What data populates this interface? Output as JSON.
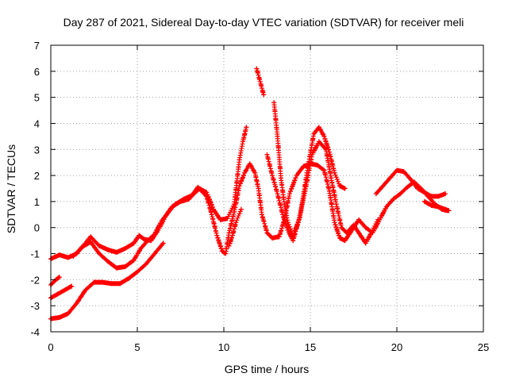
{
  "chart_data": {
    "type": "scatter",
    "title": "Day 287 of 2021, Sidereal Day-to-day VTEC variation (SDTVAR) for receiver meli",
    "xlabel": "GPS time / hours",
    "ylabel": "SDTVAR / TECUs",
    "xlim": [
      0,
      25
    ],
    "ylim": [
      -4,
      7
    ],
    "xticks": [
      0,
      5,
      10,
      15,
      20,
      25
    ],
    "yticks": [
      -4,
      -3,
      -2,
      -1,
      0,
      1,
      2,
      3,
      4,
      5,
      6,
      7
    ],
    "grid": true,
    "marker": "+",
    "color": "#ff0000",
    "series": [
      {
        "name": "track-1",
        "points": [
          [
            0,
            -1.2
          ],
          [
            0.5,
            -1.05
          ],
          [
            1,
            -1.15
          ],
          [
            1.5,
            -1.0
          ],
          [
            2,
            -0.6
          ],
          [
            2.3,
            -0.35
          ],
          [
            2.8,
            -0.7
          ],
          [
            3.3,
            -0.85
          ],
          [
            3.8,
            -0.95
          ],
          [
            4.3,
            -0.8
          ],
          [
            4.8,
            -0.6
          ],
          [
            5.1,
            -0.3
          ],
          [
            5.4,
            -0.45
          ],
          [
            5.8,
            -0.5
          ],
          [
            6.2,
            -0.1
          ],
          [
            6.6,
            0.4
          ],
          [
            7,
            0.8
          ],
          [
            7.5,
            1.0
          ],
          [
            8,
            1.1
          ],
          [
            8.5,
            1.55
          ],
          [
            9,
            1.2
          ],
          [
            9.3,
            0.5
          ],
          [
            9.6,
            -0.3
          ],
          [
            9.9,
            -0.9
          ],
          [
            10.1,
            -1.0
          ],
          [
            10.3,
            -0.2
          ],
          [
            10.6,
            0.6
          ],
          [
            10.9,
            1.6
          ],
          [
            11.2,
            2.1
          ],
          [
            11.5,
            2.45
          ],
          [
            11.8,
            2.1
          ],
          [
            12.0,
            1.5
          ],
          [
            12.2,
            0.5
          ],
          [
            12.5,
            -0.2
          ],
          [
            12.8,
            -0.4
          ],
          [
            13.2,
            -0.35
          ],
          [
            13.5,
            0.3
          ],
          [
            13.8,
            1.3
          ],
          [
            14.2,
            2.0
          ],
          [
            14.6,
            2.35
          ],
          [
            15,
            2.45
          ],
          [
            15.4,
            2.4
          ],
          [
            15.8,
            2.2
          ],
          [
            16.1,
            1.4
          ],
          [
            16.4,
            0.2
          ],
          [
            16.7,
            -0.4
          ],
          [
            17,
            -0.5
          ],
          [
            17.4,
            -0.1
          ],
          [
            17.8,
            0.3
          ],
          [
            18.2,
            0.0
          ],
          [
            18.6,
            -0.2
          ],
          [
            19,
            0.3
          ],
          [
            19.4,
            0.8
          ],
          [
            19.8,
            1.1
          ],
          [
            20.2,
            1.3
          ],
          [
            20.6,
            1.55
          ],
          [
            21,
            1.75
          ],
          [
            21.4,
            1.5
          ],
          [
            21.8,
            1.2
          ],
          [
            22.2,
            0.9
          ],
          [
            22.6,
            0.7
          ],
          [
            22.9,
            0.65
          ]
        ]
      },
      {
        "name": "track-2",
        "points": [
          [
            1.3,
            -1.1
          ],
          [
            1.8,
            -0.75
          ],
          [
            2.3,
            -0.55
          ],
          [
            2.8,
            -1.0
          ],
          [
            3.3,
            -1.3
          ],
          [
            3.8,
            -1.55
          ],
          [
            4.3,
            -1.5
          ],
          [
            4.8,
            -1.25
          ],
          [
            5.2,
            -0.8
          ],
          [
            5.6,
            -0.5
          ],
          [
            6.0,
            -0.25
          ],
          [
            6.4,
            0.25
          ],
          [
            6.8,
            0.6
          ],
          [
            7.2,
            0.9
          ],
          [
            7.7,
            1.1
          ],
          [
            8.2,
            1.25
          ],
          [
            8.6,
            1.5
          ],
          [
            9,
            1.35
          ],
          [
            9.4,
            0.7
          ],
          [
            9.8,
            0.3
          ],
          [
            10.2,
            0.35
          ],
          [
            10.6,
            0.9
          ],
          [
            10.9,
            2.6
          ],
          [
            11.1,
            3.3
          ],
          [
            11.3,
            3.85
          ]
        ]
      },
      {
        "name": "track-3",
        "points": [
          [
            0,
            -2.2
          ],
          [
            0.3,
            -2.0
          ],
          [
            0.5,
            -1.9
          ]
        ]
      },
      {
        "name": "track-4",
        "points": [
          [
            0,
            -2.7
          ],
          [
            0.4,
            -2.55
          ],
          [
            0.8,
            -2.4
          ],
          [
            1.2,
            -2.25
          ]
        ]
      },
      {
        "name": "track-5",
        "points": [
          [
            0,
            -3.5
          ],
          [
            0.5,
            -3.45
          ],
          [
            1,
            -3.3
          ],
          [
            1.5,
            -2.9
          ],
          [
            2,
            -2.4
          ],
          [
            2.5,
            -2.1
          ],
          [
            3,
            -2.1
          ],
          [
            3.5,
            -2.15
          ],
          [
            4,
            -2.15
          ],
          [
            4.5,
            -1.95
          ],
          [
            5,
            -1.7
          ],
          [
            5.5,
            -1.4
          ],
          [
            6,
            -1.0
          ],
          [
            6.5,
            -0.6
          ]
        ]
      },
      {
        "name": "track-6",
        "points": [
          [
            10.3,
            -0.7
          ],
          [
            10.5,
            -0.3
          ],
          [
            10.7,
            0.2
          ],
          [
            11.0,
            0.7
          ]
        ]
      },
      {
        "name": "track-7",
        "points": [
          [
            11.9,
            6.1
          ],
          [
            12.1,
            5.6
          ],
          [
            12.3,
            5.1
          ]
        ]
      },
      {
        "name": "track-8",
        "points": [
          [
            12.9,
            4.8
          ],
          [
            13.1,
            3.5
          ],
          [
            13.3,
            1.9
          ],
          [
            13.5,
            0.9
          ],
          [
            13.7,
            0.2
          ],
          [
            14.0,
            -0.3
          ],
          [
            14.4,
            0.4
          ],
          [
            14.8,
            2.1
          ],
          [
            15.2,
            3.6
          ],
          [
            15.5,
            3.85
          ],
          [
            15.8,
            3.5
          ],
          [
            16.1,
            2.9
          ],
          [
            16.4,
            2.1
          ],
          [
            16.7,
            1.6
          ],
          [
            17.0,
            1.5
          ]
        ]
      },
      {
        "name": "track-9",
        "points": [
          [
            12.5,
            2.8
          ],
          [
            12.8,
            2.0
          ],
          [
            13.1,
            1.3
          ],
          [
            13.4,
            0.5
          ],
          [
            13.7,
            -0.1
          ],
          [
            14.0,
            -0.5
          ],
          [
            14.3,
            0.2
          ],
          [
            14.7,
            1.4
          ],
          [
            15.1,
            2.8
          ],
          [
            15.5,
            3.3
          ],
          [
            15.9,
            3.0
          ],
          [
            16.2,
            1.9
          ],
          [
            16.5,
            0.9
          ],
          [
            16.8,
            0.0
          ],
          [
            17.1,
            -0.2
          ],
          [
            17.5,
            0.1
          ],
          [
            17.9,
            -0.3
          ],
          [
            18.2,
            -0.6
          ],
          [
            18.6,
            -0.1
          ],
          [
            18.9,
            0.3
          ]
        ]
      },
      {
        "name": "track-10",
        "points": [
          [
            18.8,
            1.3
          ],
          [
            19.2,
            1.6
          ],
          [
            19.6,
            1.9
          ],
          [
            20.0,
            2.2
          ],
          [
            20.4,
            2.15
          ],
          [
            20.8,
            1.85
          ],
          [
            21.2,
            1.5
          ],
          [
            21.6,
            1.35
          ],
          [
            22.0,
            1.2
          ],
          [
            22.4,
            1.2
          ],
          [
            22.8,
            1.3
          ]
        ]
      },
      {
        "name": "track-11",
        "points": [
          [
            21.6,
            1.0
          ],
          [
            22.0,
            0.85
          ],
          [
            22.4,
            0.8
          ],
          [
            22.8,
            0.7
          ],
          [
            23.0,
            0.65
          ]
        ]
      }
    ]
  }
}
